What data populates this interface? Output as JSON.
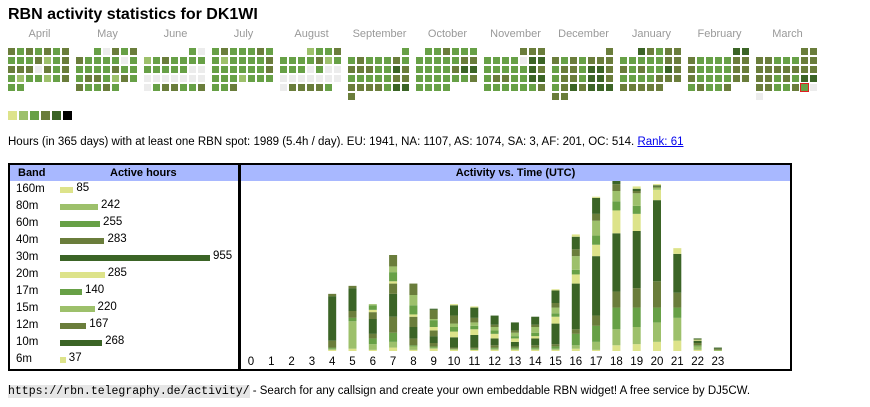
{
  "title": "RBN activity statistics for DK1WI",
  "colors": {
    "levels": [
      "#ececec",
      "#dde38a",
      "#9dc06b",
      "#67a046",
      "#6a7d3b",
      "#3b6426",
      "#000000"
    ],
    "header_bg": "#a8b8ff",
    "today_border": "#e02020"
  },
  "calendar": [
    {
      "name": "April",
      "start": 0,
      "rows": [
        [
          4,
          3,
          4,
          3,
          4,
          3,
          4
        ],
        [
          3,
          3,
          3,
          4,
          2,
          3,
          4
        ],
        [
          4,
          4,
          4,
          0,
          4,
          3,
          4
        ],
        [
          3,
          2,
          3,
          3,
          2,
          3,
          4
        ],
        [
          3,
          3
        ]
      ]
    },
    {
      "name": "May",
      "start": 2,
      "rows": [
        [
          null,
          null,
          3,
          0,
          4,
          3,
          4
        ],
        [
          4,
          3,
          3,
          3,
          3,
          0,
          3
        ],
        [
          3,
          3,
          3,
          3,
          4,
          3,
          3
        ],
        [
          3,
          4,
          4,
          3,
          2,
          4,
          3
        ],
        [
          4,
          3,
          3,
          4,
          3
        ]
      ]
    },
    {
      "name": "June",
      "start": 5,
      "rows": [
        [
          null,
          null,
          null,
          null,
          null,
          3,
          0
        ],
        [
          2,
          3,
          4,
          3,
          3,
          3,
          3
        ],
        [
          3,
          3,
          3,
          3,
          3,
          0,
          0
        ],
        [
          0,
          0,
          0,
          0,
          0,
          0,
          0
        ],
        [
          0,
          3,
          4,
          4,
          3,
          3,
          4
        ]
      ]
    },
    {
      "name": "July",
      "start": 0,
      "rows": [
        [
          3,
          4,
          3,
          3,
          3,
          4,
          3
        ],
        [
          3,
          2,
          3,
          3,
          3,
          3,
          4
        ],
        [
          3,
          3,
          3,
          3,
          3,
          3,
          4
        ],
        [
          3,
          3,
          3,
          2,
          3,
          3,
          3
        ],
        [
          3,
          3,
          4
        ]
      ]
    },
    {
      "name": "August",
      "start": 3,
      "rows": [
        [
          null,
          null,
          null,
          2,
          3,
          3,
          4
        ],
        [
          3,
          3,
          3,
          3,
          4,
          2,
          3
        ],
        [
          3,
          3,
          3,
          0,
          3,
          0,
          0
        ],
        [
          0,
          0,
          0,
          0,
          0,
          0,
          0
        ],
        [
          0,
          4,
          4,
          4,
          4,
          3
        ]
      ]
    },
    {
      "name": "September",
      "start": 6,
      "rows": [
        [
          null,
          null,
          null,
          null,
          null,
          null,
          3
        ],
        [
          3,
          4,
          3,
          3,
          3,
          4,
          3
        ],
        [
          4,
          4,
          4,
          3,
          3,
          5,
          4
        ],
        [
          3,
          3,
          3,
          3,
          3,
          4,
          4
        ],
        [
          4,
          4,
          4,
          4,
          3,
          5,
          5
        ],
        [
          4
        ]
      ]
    },
    {
      "name": "October",
      "start": 1,
      "rows": [
        [
          null,
          3,
          3,
          4,
          3,
          3,
          3
        ],
        [
          3,
          3,
          3,
          3,
          3,
          4,
          4
        ],
        [
          3,
          3,
          3,
          3,
          4,
          5,
          5
        ],
        [
          3,
          3,
          3,
          3,
          3,
          3,
          4
        ],
        [
          3,
          3,
          3,
          3
        ]
      ]
    },
    {
      "name": "November",
      "start": 4,
      "rows": [
        [
          null,
          null,
          null,
          null,
          4,
          4,
          4
        ],
        [
          3,
          3,
          3,
          3,
          0,
          5,
          5
        ],
        [
          3,
          3,
          3,
          3,
          3,
          5,
          4
        ],
        [
          3,
          4,
          4,
          3,
          3,
          5,
          5
        ],
        [
          3,
          3,
          3,
          3,
          3,
          3,
          4
        ]
      ]
    },
    {
      "name": "December",
      "start": 6,
      "rows": [
        [
          null,
          null,
          null,
          null,
          null,
          null,
          4
        ],
        [
          4,
          3,
          4,
          3,
          4,
          4,
          4
        ],
        [
          3,
          4,
          4,
          3,
          5,
          5,
          4
        ],
        [
          3,
          4,
          4,
          3,
          5,
          5,
          4
        ],
        [
          3,
          4,
          5,
          4,
          5,
          5,
          5
        ],
        [
          4,
          4
        ]
      ]
    },
    {
      "name": "January",
      "start": 2,
      "rows": [
        [
          null,
          null,
          5,
          4,
          3,
          4,
          4
        ],
        [
          3,
          3,
          3,
          3,
          3,
          4,
          4
        ],
        [
          4,
          3,
          4,
          3,
          3,
          5,
          4
        ],
        [
          3,
          3,
          3,
          3,
          4,
          4,
          4
        ],
        [
          4,
          4,
          4,
          4,
          4
        ]
      ]
    },
    {
      "name": "February",
      "start": 5,
      "rows": [
        [
          null,
          null,
          null,
          null,
          null,
          5,
          5
        ],
        [
          4,
          3,
          3,
          3,
          3,
          4,
          4
        ],
        [
          4,
          3,
          3,
          3,
          3,
          4,
          4
        ],
        [
          4,
          3,
          3,
          3,
          3,
          4,
          4
        ],
        [
          3,
          4,
          3,
          3,
          4
        ]
      ]
    },
    {
      "name": "March",
      "start": 5,
      "rows": [
        [
          null,
          null,
          null,
          null,
          null,
          4,
          4
        ],
        [
          4,
          4,
          3,
          3,
          3,
          4,
          4
        ],
        [
          4,
          4,
          4,
          4,
          4,
          4,
          4
        ],
        [
          4,
          4,
          3,
          4,
          3,
          5,
          5
        ],
        [
          4,
          4,
          3,
          3,
          4,
          "today",
          0
        ],
        [
          0
        ]
      ]
    }
  ],
  "legend": [
    1,
    2,
    3,
    4,
    5,
    6
  ],
  "summary": {
    "text": "Hours (in 365 days) with at least one RBN spot: 1989 (5.4h / day). EU: 1941, NA: 1107, AS: 1074, SA: 3, AF: 201, OC: 514.",
    "rank_link": "Rank: 61"
  },
  "bands_table": {
    "header_band": "Band",
    "header_hours": "Active hours",
    "rows": [
      {
        "band": "160m",
        "hours": 85,
        "color": "#dde38a"
      },
      {
        "band": "80m",
        "hours": 242,
        "color": "#9dc06b"
      },
      {
        "band": "60m",
        "hours": 255,
        "color": "#67a046"
      },
      {
        "band": "40m",
        "hours": 283,
        "color": "#6a7d3b"
      },
      {
        "band": "30m",
        "hours": 955,
        "color": "#3b6426"
      },
      {
        "band": "20m",
        "hours": 285,
        "color": "#dde38a"
      },
      {
        "band": "17m",
        "hours": 140,
        "color": "#67a046"
      },
      {
        "band": "15m",
        "hours": 220,
        "color": "#9dc06b"
      },
      {
        "band": "12m",
        "hours": 167,
        "color": "#6a7d3b"
      },
      {
        "band": "10m",
        "hours": 268,
        "color": "#3b6426"
      },
      {
        "band": "6m",
        "hours": 37,
        "color": "#dde38a"
      }
    ]
  },
  "chart_data": {
    "type": "bar",
    "title": "Activity vs. Time (UTC)",
    "xlabel": "",
    "ylabel": "",
    "categories": [
      "0",
      "1",
      "2",
      "3",
      "4",
      "5",
      "6",
      "7",
      "8",
      "9",
      "10",
      "11",
      "12",
      "13",
      "14",
      "15",
      "16",
      "17",
      "18",
      "19",
      "20",
      "21",
      "22",
      "23"
    ],
    "stack_colors": [
      "#dde38a",
      "#9dc06b",
      "#67a046",
      "#6a7d3b",
      "#3b6426",
      "#6a7d3b",
      "#dde38a",
      "#67a046",
      "#9dc06b",
      "#6a7d3b",
      "#3b6426",
      "#dde38a"
    ],
    "series_note": "stacked segments bottom-to-top, values in active hours (estimated)",
    "stacks": [
      [],
      [],
      [],
      [],
      [
        1,
        1,
        1,
        6,
        39,
        2
      ],
      [
        2,
        24,
        3,
        6,
        20,
        2
      ],
      [
        1,
        5,
        5,
        4,
        13,
        6,
        2,
        4,
        1
      ],
      [
        3,
        5,
        8,
        14,
        20,
        9,
        2,
        8,
        5,
        10
      ],
      [
        1,
        3,
        1,
        6,
        10,
        9,
        2,
        8,
        9,
        10
      ],
      [
        2,
        1,
        1,
        3,
        6,
        5,
        3,
        6,
        1,
        8,
        1
      ],
      [
        1,
        1,
        0,
        1,
        9,
        0,
        5,
        4,
        3,
        7,
        9,
        1
      ],
      [
        1,
        0,
        1,
        1,
        11,
        0,
        5,
        3,
        3,
        4,
        9,
        1
      ],
      [
        1,
        1,
        1,
        2,
        6,
        0,
        4,
        3,
        3,
        2,
        8,
        0
      ],
      [
        1,
        1,
        1,
        1,
        4,
        0,
        3,
        2,
        3,
        2,
        7,
        0
      ],
      [
        1,
        1,
        1,
        2,
        6,
        0,
        2,
        3,
        5,
        2,
        7,
        0
      ],
      [
        1,
        1,
        2,
        2,
        18,
        0,
        6,
        3,
        5,
        4,
        11,
        1
      ],
      [
        2,
        3,
        10,
        4,
        40,
        0,
        8,
        4,
        12,
        6,
        11,
        2
      ],
      [
        1,
        7,
        14,
        9,
        52,
        0,
        10,
        8,
        13,
        6,
        14,
        1
      ],
      [
        5,
        14,
        19,
        14,
        51,
        0,
        20,
        8,
        9,
        6,
        11,
        2
      ],
      [
        6,
        15,
        17,
        17,
        50,
        0,
        15,
        7,
        11,
        2,
        2,
        2
      ],
      [
        8,
        17,
        13,
        23,
        71,
        0,
        9,
        0,
        2,
        1,
        1,
        1
      ],
      [
        9,
        20,
        9,
        13,
        34,
        0,
        5,
        0,
        0,
        0,
        0,
        0
      ],
      [
        1,
        3,
        1,
        2,
        2,
        0,
        1,
        0,
        0,
        0,
        1,
        0
      ],
      [
        0,
        1,
        0,
        1,
        1,
        0,
        0,
        0,
        0,
        0,
        0,
        0
      ]
    ],
    "ylim": [
      0,
      140
    ],
    "grid": false,
    "legend": "none"
  },
  "footer": {
    "url": "https://rbn.telegraphy.de/activity/",
    "text": " - Search for any callsign and create your own embeddable RBN widget! A free service by DJ5CW."
  }
}
